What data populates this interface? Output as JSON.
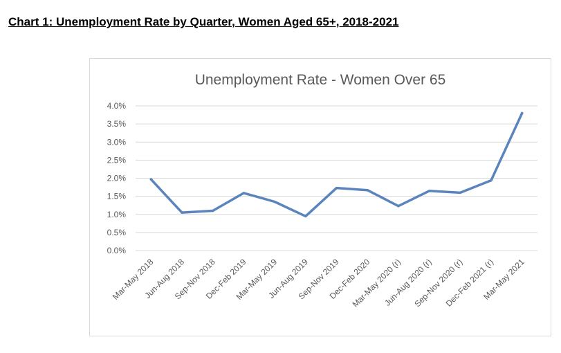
{
  "page": {
    "heading": "Chart 1: Unemployment Rate by Quarter, Women Aged 65+, 2018-2021"
  },
  "chart_data": {
    "type": "line",
    "title": "Unemployment Rate - Women Over 65",
    "xlabel": "",
    "ylabel": "",
    "ylim": [
      0,
      4
    ],
    "yticks": [
      0,
      0.5,
      1.0,
      1.5,
      2.0,
      2.5,
      3.0,
      3.5,
      4.0
    ],
    "ytick_labels": [
      "0.0%",
      "0.5%",
      "1.0%",
      "1.5%",
      "2.0%",
      "2.5%",
      "3.0%",
      "3.5%",
      "4.0%"
    ],
    "grid": true,
    "legend": "none",
    "categories": [
      "Mar-May 2018",
      "Jun-Aug 2018",
      "Sep-Nov 2018",
      "Dec-Feb 2019",
      "Mar-May 2019",
      "Jun-Aug 2019",
      "Sep-Nov 2019",
      "Dec-Feb 2020",
      "Mar-May 2020 (r)",
      "Jun-Aug 2020 (r)",
      "Sep-Nov 2020 (r)",
      "Dec-Feb 2021 (r)",
      "Mar-May 2021"
    ],
    "series": [
      {
        "color": "#5b84bd",
        "values": [
          1.97,
          1.05,
          1.1,
          1.59,
          1.35,
          0.95,
          1.73,
          1.67,
          1.23,
          1.65,
          1.6,
          1.94,
          3.8
        ]
      }
    ]
  }
}
